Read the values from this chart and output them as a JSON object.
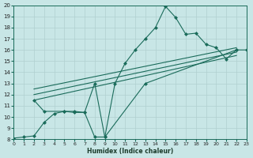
{
  "xlabel": "Humidex (Indice chaleur)",
  "xlim": [
    0,
    23
  ],
  "ylim": [
    8,
    20
  ],
  "xticks": [
    0,
    1,
    2,
    3,
    4,
    5,
    6,
    7,
    8,
    9,
    10,
    11,
    12,
    13,
    14,
    15,
    16,
    17,
    18,
    19,
    20,
    21,
    22,
    23
  ],
  "yticks": [
    8,
    9,
    10,
    11,
    12,
    13,
    14,
    15,
    16,
    17,
    18,
    19,
    20
  ],
  "bg_color": "#c8e6e6",
  "grid_color": "#b0d0d0",
  "line_color": "#1a6b5a",
  "curve1_x": [
    0,
    1,
    2,
    3,
    4,
    5,
    6,
    7,
    8,
    9,
    10,
    11,
    12,
    13,
    14,
    15,
    16,
    17,
    18,
    19,
    20,
    21,
    22,
    23
  ],
  "curve1_y": [
    8.1,
    8.2,
    8.3,
    9.5,
    10.3,
    10.5,
    10.5,
    10.4,
    8.2,
    8.2,
    13.0,
    14.8,
    16.0,
    17.0,
    18.0,
    19.9,
    18.9,
    17.4,
    17.5,
    16.5,
    16.2,
    15.2,
    16.0,
    16.0
  ],
  "curve2_x": [
    2,
    3,
    5,
    6,
    7,
    8,
    9,
    13,
    22
  ],
  "curve2_y": [
    11.5,
    10.5,
    10.5,
    10.4,
    10.4,
    13.0,
    8.2,
    13.0,
    16.0
  ],
  "trend1_x": [
    2,
    22
  ],
  "trend1_y": [
    11.5,
    15.5
  ],
  "trend2_x": [
    2,
    22
  ],
  "trend2_y": [
    12.0,
    15.8
  ],
  "trend3_x": [
    2,
    22
  ],
  "trend3_y": [
    12.5,
    16.2
  ]
}
